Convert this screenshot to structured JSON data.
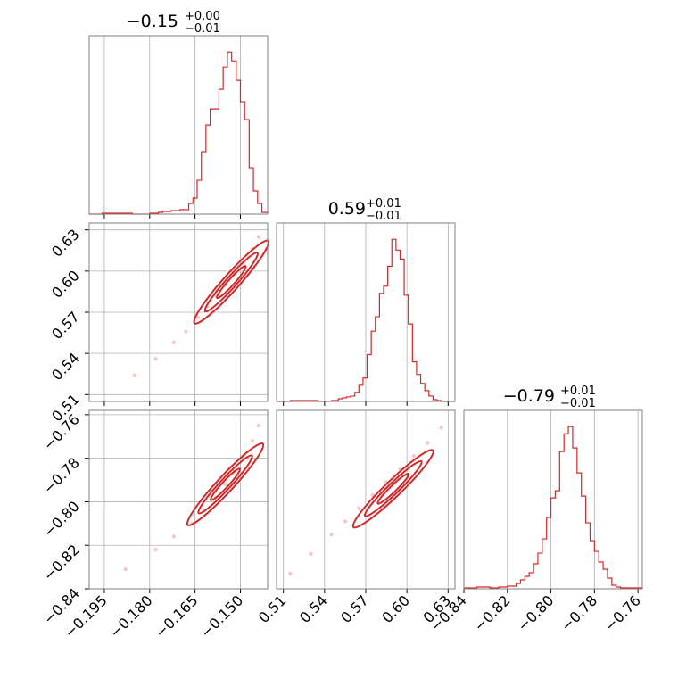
{
  "page": {
    "title": ""
  },
  "colors": {
    "series": "#d62728",
    "grid": "#b0b0b0",
    "frame": "#808080",
    "background": "#ffffff"
  },
  "titles": {
    "p0": {
      "main": "−0.15",
      "sup": "+0.00",
      "sub": "−0.01"
    },
    "p1": {
      "main": "0.59",
      "sup": "+0.01",
      "sub": "−0.01"
    },
    "p2": {
      "main": "−0.79",
      "sup": "+0.01",
      "sub": "−0.01"
    }
  },
  "chart_data": [
    {
      "type": "histogram",
      "panel": "param0-marginal",
      "title": "−0.15 +0.00 −0.01",
      "xlim": [
        -0.2,
        -0.141
      ],
      "xticks": [
        -0.195,
        -0.18,
        -0.165,
        -0.15
      ],
      "xtick_labels": [
        "−0.195",
        "−0.180",
        "−0.165",
        "−0.150"
      ],
      "grid": true,
      "x": [
        -0.2,
        -0.1957,
        -0.19,
        -0.1857,
        -0.18,
        -0.1771,
        -0.1757,
        -0.1729,
        -0.17,
        -0.1686,
        -0.1671,
        -0.1657,
        -0.1643,
        -0.1629,
        -0.1614,
        -0.16,
        -0.1586,
        -0.1571,
        -0.1557,
        -0.1543,
        -0.1529,
        -0.1514,
        -0.15,
        -0.1486,
        -0.1471,
        -0.1457,
        -0.1443,
        -0.1429,
        -0.141
      ],
      "counts": [
        0,
        1,
        1,
        0,
        1,
        2,
        3,
        4,
        5,
        5,
        12,
        18,
        38,
        70,
        100,
        118,
        118,
        140,
        165,
        182,
        172,
        150,
        126,
        106,
        52,
        26,
        12,
        2,
        1
      ]
    },
    {
      "type": "scatter",
      "panel": "param0-vs-param1",
      "xlim": [
        -0.2,
        -0.141
      ],
      "ylim": [
        0.505,
        0.635
      ],
      "yticks": [
        0.51,
        0.54,
        0.57,
        0.6,
        0.63
      ],
      "ytick_labels": [
        "0.51",
        "0.54",
        "0.57",
        "0.60",
        "0.63"
      ],
      "grid": true,
      "points_x": [
        -0.185,
        -0.178,
        -0.172,
        -0.168,
        -0.164,
        -0.161,
        -0.158,
        -0.155,
        -0.152,
        -0.149,
        -0.146,
        -0.144
      ],
      "points_y": [
        0.524,
        0.536,
        0.548,
        0.556,
        0.566,
        0.574,
        0.582,
        0.59,
        0.598,
        0.606,
        0.616,
        0.625
      ],
      "contour_center": [
        -0.153,
        0.592
      ]
    },
    {
      "type": "histogram",
      "panel": "param1-marginal",
      "title": "0.59 +0.01 −0.01",
      "xlim": [
        0.505,
        0.635
      ],
      "xticks": [
        0.51,
        0.54,
        0.57,
        0.6,
        0.63
      ],
      "xtick_labels": [
        "0.51",
        "0.54",
        "0.57",
        "0.60",
        "0.63"
      ],
      "grid": true,
      "x": [
        0.505,
        0.515,
        0.525,
        0.535,
        0.545,
        0.55,
        0.553,
        0.556,
        0.559,
        0.562,
        0.565,
        0.568,
        0.571,
        0.574,
        0.577,
        0.58,
        0.583,
        0.586,
        0.589,
        0.592,
        0.595,
        0.598,
        0.601,
        0.604,
        0.607,
        0.61,
        0.613,
        0.616,
        0.619,
        0.622,
        0.625,
        0.635
      ],
      "counts": [
        0,
        1,
        1,
        0,
        1,
        3,
        4,
        5,
        6,
        10,
        18,
        26,
        52,
        78,
        94,
        120,
        128,
        150,
        180,
        168,
        158,
        118,
        86,
        44,
        30,
        20,
        12,
        6,
        2,
        1,
        0,
        0
      ]
    },
    {
      "type": "scatter",
      "panel": "param0-vs-param2",
      "xlim": [
        -0.2,
        -0.141
      ],
      "ylim": [
        -0.84,
        -0.758
      ],
      "yticks": [
        -0.84,
        -0.82,
        -0.8,
        -0.78,
        -0.76
      ],
      "ytick_labels": [
        "−0.84",
        "−0.82",
        "−0.80",
        "−0.78",
        "−0.76"
      ],
      "grid": true,
      "points_x": [
        -0.188,
        -0.178,
        -0.172,
        -0.166,
        -0.162,
        -0.158,
        -0.155,
        -0.152,
        -0.149,
        -0.146,
        -0.144
      ],
      "points_y": [
        -0.831,
        -0.822,
        -0.816,
        -0.81,
        -0.804,
        -0.798,
        -0.792,
        -0.786,
        -0.779,
        -0.772,
        -0.765
      ],
      "contour_center": [
        -0.155,
        -0.792
      ]
    },
    {
      "type": "scatter",
      "panel": "param1-vs-param2",
      "xlim": [
        0.505,
        0.635
      ],
      "ylim": [
        -0.84,
        -0.758
      ],
      "grid": true,
      "points_x": [
        0.515,
        0.53,
        0.545,
        0.555,
        0.565,
        0.575,
        0.585,
        0.595,
        0.605,
        0.615,
        0.625
      ],
      "points_y": [
        -0.833,
        -0.824,
        -0.815,
        -0.809,
        -0.803,
        -0.797,
        -0.791,
        -0.785,
        -0.779,
        -0.773,
        -0.766
      ],
      "contour_center": [
        0.59,
        -0.794
      ]
    },
    {
      "type": "histogram",
      "panel": "param2-marginal",
      "title": "−0.79 +0.01 −0.01",
      "xlim": [
        -0.84,
        -0.758
      ],
      "xticks": [
        -0.84,
        -0.82,
        -0.8,
        -0.78,
        -0.76
      ],
      "xtick_labels": [
        "−0.84",
        "−0.82",
        "−0.80",
        "−0.78",
        "−0.76"
      ],
      "grid": true,
      "x": [
        -0.84,
        -0.834,
        -0.828,
        -0.824,
        -0.82,
        -0.816,
        -0.814,
        -0.812,
        -0.81,
        -0.808,
        -0.806,
        -0.804,
        -0.802,
        -0.8,
        -0.798,
        -0.796,
        -0.794,
        -0.792,
        -0.79,
        -0.788,
        -0.786,
        -0.784,
        -0.782,
        -0.78,
        -0.778,
        -0.776,
        -0.774,
        -0.772,
        -0.77,
        -0.768,
        -0.758
      ],
      "counts": [
        1,
        2,
        1,
        2,
        3,
        6,
        10,
        14,
        18,
        28,
        40,
        56,
        80,
        102,
        110,
        154,
        174,
        182,
        158,
        130,
        104,
        74,
        54,
        42,
        30,
        22,
        12,
        4,
        2,
        1,
        0
      ]
    }
  ]
}
